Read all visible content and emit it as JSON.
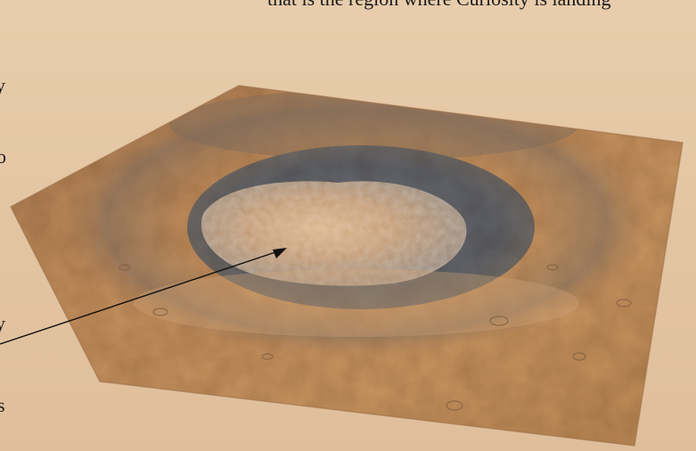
{
  "figure": {
    "top_text_fragment": "that is the region where Curiosity is landing",
    "left_text_fragments": [
      "y",
      "o",
      "y",
      "s"
    ]
  },
  "colors": {
    "background": "#e6c8a6",
    "terrain_light": "#c9955f",
    "terrain_mid": "#b07a48",
    "crater_floor_dark": "#6a6c72",
    "mound": "#c9a47c",
    "arrow": "#111111"
  },
  "icons": {
    "arrow": "pointer-arrow-icon"
  }
}
